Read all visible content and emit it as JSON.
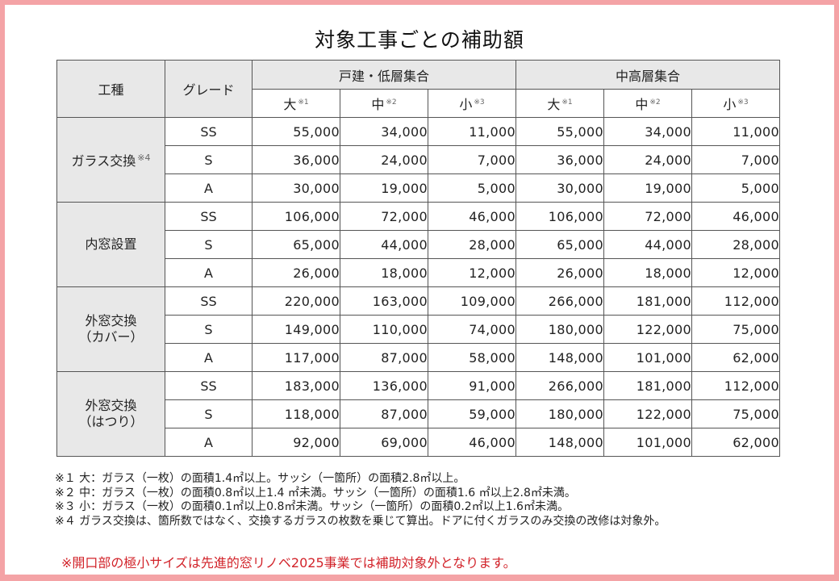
{
  "title": "対象工事ごとの補助額",
  "header": {
    "col_type": "工種",
    "col_grade": "グレード",
    "group1": "戸建・低層集合",
    "group2": "中高層集合",
    "sizes": [
      {
        "label": "大",
        "note": "※1"
      },
      {
        "label": "中",
        "note": "※2"
      },
      {
        "label": "小",
        "note": "※3"
      },
      {
        "label": "大",
        "note": "※1"
      },
      {
        "label": "中",
        "note": "※2"
      },
      {
        "label": "小",
        "note": "※3"
      }
    ]
  },
  "rows": [
    {
      "category": "ガラス交換",
      "note": "※4",
      "line2": "",
      "grades": [
        {
          "grade": "SS",
          "values": [
            "55,000",
            "34,000",
            "11,000",
            "55,000",
            "34,000",
            "11,000"
          ]
        },
        {
          "grade": "S",
          "values": [
            "36,000",
            "24,000",
            "7,000",
            "36,000",
            "24,000",
            "7,000"
          ]
        },
        {
          "grade": "A",
          "values": [
            "30,000",
            "19,000",
            "5,000",
            "30,000",
            "19,000",
            "5,000"
          ]
        }
      ]
    },
    {
      "category": "内窓設置",
      "note": "",
      "line2": "",
      "grades": [
        {
          "grade": "SS",
          "values": [
            "106,000",
            "72,000",
            "46,000",
            "106,000",
            "72,000",
            "46,000"
          ]
        },
        {
          "grade": "S",
          "values": [
            "65,000",
            "44,000",
            "28,000",
            "65,000",
            "44,000",
            "28,000"
          ]
        },
        {
          "grade": "A",
          "values": [
            "26,000",
            "18,000",
            "12,000",
            "26,000",
            "18,000",
            "12,000"
          ]
        }
      ]
    },
    {
      "category": "外窓交換",
      "note": "",
      "line2": "（カバー）",
      "grades": [
        {
          "grade": "SS",
          "values": [
            "220,000",
            "163,000",
            "109,000",
            "266,000",
            "181,000",
            "112,000"
          ]
        },
        {
          "grade": "S",
          "values": [
            "149,000",
            "110,000",
            "74,000",
            "180,000",
            "122,000",
            "75,000"
          ]
        },
        {
          "grade": "A",
          "values": [
            "117,000",
            "87,000",
            "58,000",
            "148,000",
            "101,000",
            "62,000"
          ]
        }
      ]
    },
    {
      "category": "外窓交換",
      "note": "",
      "line2": "（はつり）",
      "grades": [
        {
          "grade": "SS",
          "values": [
            "183,000",
            "136,000",
            "91,000",
            "266,000",
            "181,000",
            "112,000"
          ]
        },
        {
          "grade": "S",
          "values": [
            "118,000",
            "87,000",
            "59,000",
            "180,000",
            "122,000",
            "75,000"
          ]
        },
        {
          "grade": "A",
          "values": [
            "92,000",
            "69,000",
            "46,000",
            "148,000",
            "101,000",
            "62,000"
          ]
        }
      ]
    }
  ],
  "notes": [
    "※１ 大：ガラス（一枚）の面積1.4㎡以上。サッシ（一箇所）の面積2.8㎡以上。",
    "※２ 中：ガラス（一枚）の面積0.8㎡以上1.4 ㎡未満。サッシ（一箇所）の面積1.6 ㎡以上2.8㎡未満。",
    "※３ 小：ガラス（一枚）の面積0.1㎡以上0.8㎡未満。サッシ（一箇所）の面積0.2㎡以上1.6㎡未満。",
    "※４ ガラス交換は、箇所数ではなく、交換するガラスの枚数を乗じて算出。ドアに付くガラスのみ交換の改修は対象外。"
  ],
  "warning": "※開口部の極小サイズは先進的窓リノベ2025事業では補助対象外となります。",
  "colors": {
    "frame": "#f4a3a6",
    "header_bg": "#e8e8e8",
    "warning": "#d2232a",
    "border": "#555555"
  }
}
